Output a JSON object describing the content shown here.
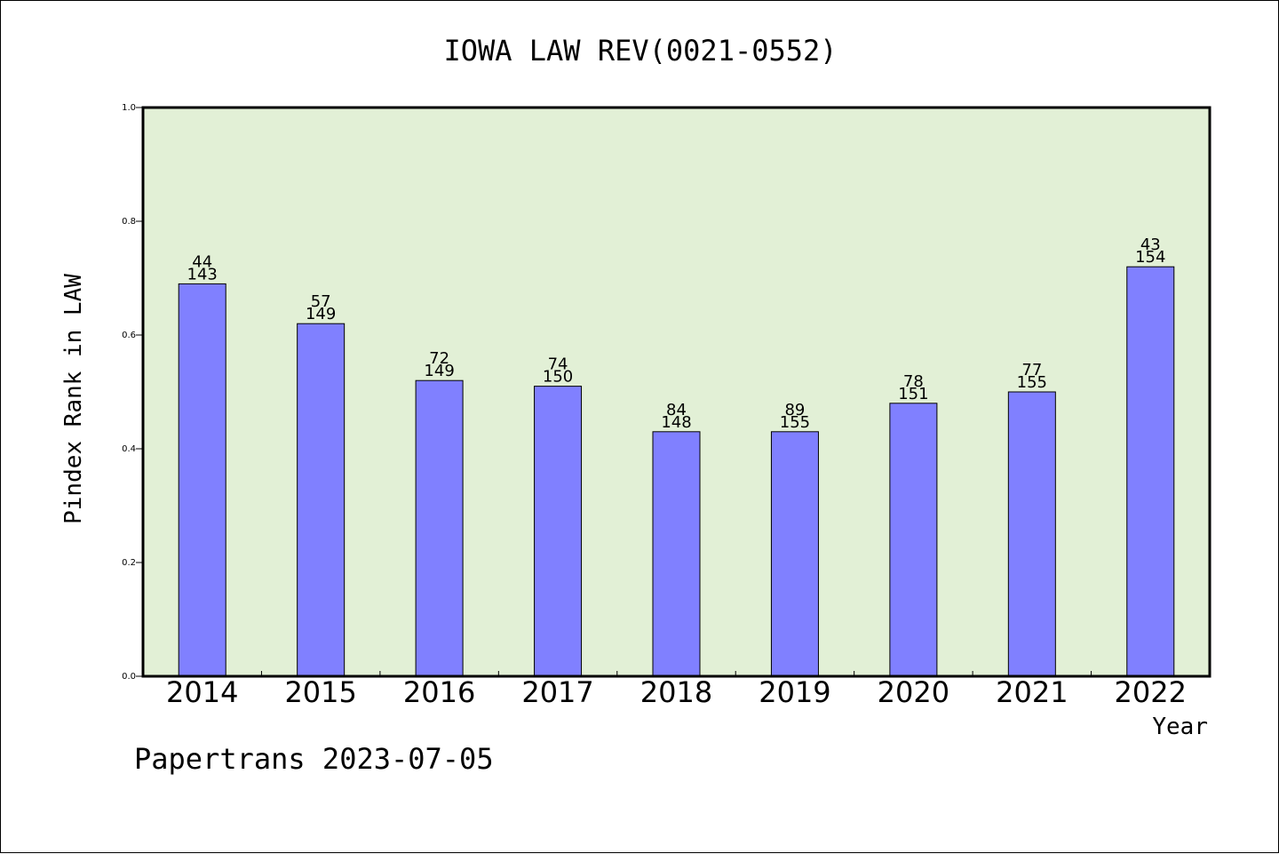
{
  "chart_data": {
    "type": "bar",
    "title": "IOWA LAW REV(0021-0552)",
    "xlabel": "Year",
    "ylabel": "Pindex Rank in LAW",
    "ylim": [
      0,
      1.0
    ],
    "yticks": [
      "0.0",
      "0.2",
      "0.4",
      "0.6",
      "0.8",
      "1.0"
    ],
    "ytick_values": [
      0,
      0.2,
      0.4,
      0.6,
      0.8,
      1.0
    ],
    "grid": false,
    "categories": [
      "2014",
      "2015",
      "2016",
      "2017",
      "2018",
      "2019",
      "2020",
      "2021",
      "2022"
    ],
    "values": [
      0.69,
      0.62,
      0.52,
      0.51,
      0.43,
      0.43,
      0.48,
      0.5,
      0.72
    ],
    "rank_labels": [
      "44",
      "57",
      "72",
      "74",
      "84",
      "89",
      "78",
      "77",
      "43"
    ],
    "total_labels": [
      "143",
      "149",
      "149",
      "150",
      "148",
      "155",
      "151",
      "155",
      "154"
    ],
    "colors": {
      "bar": "#8080ff",
      "plot_bg": "#e2f0d6",
      "axis": "#000000"
    }
  },
  "footer": {
    "credit": "Papertrans 2023-07-05"
  }
}
